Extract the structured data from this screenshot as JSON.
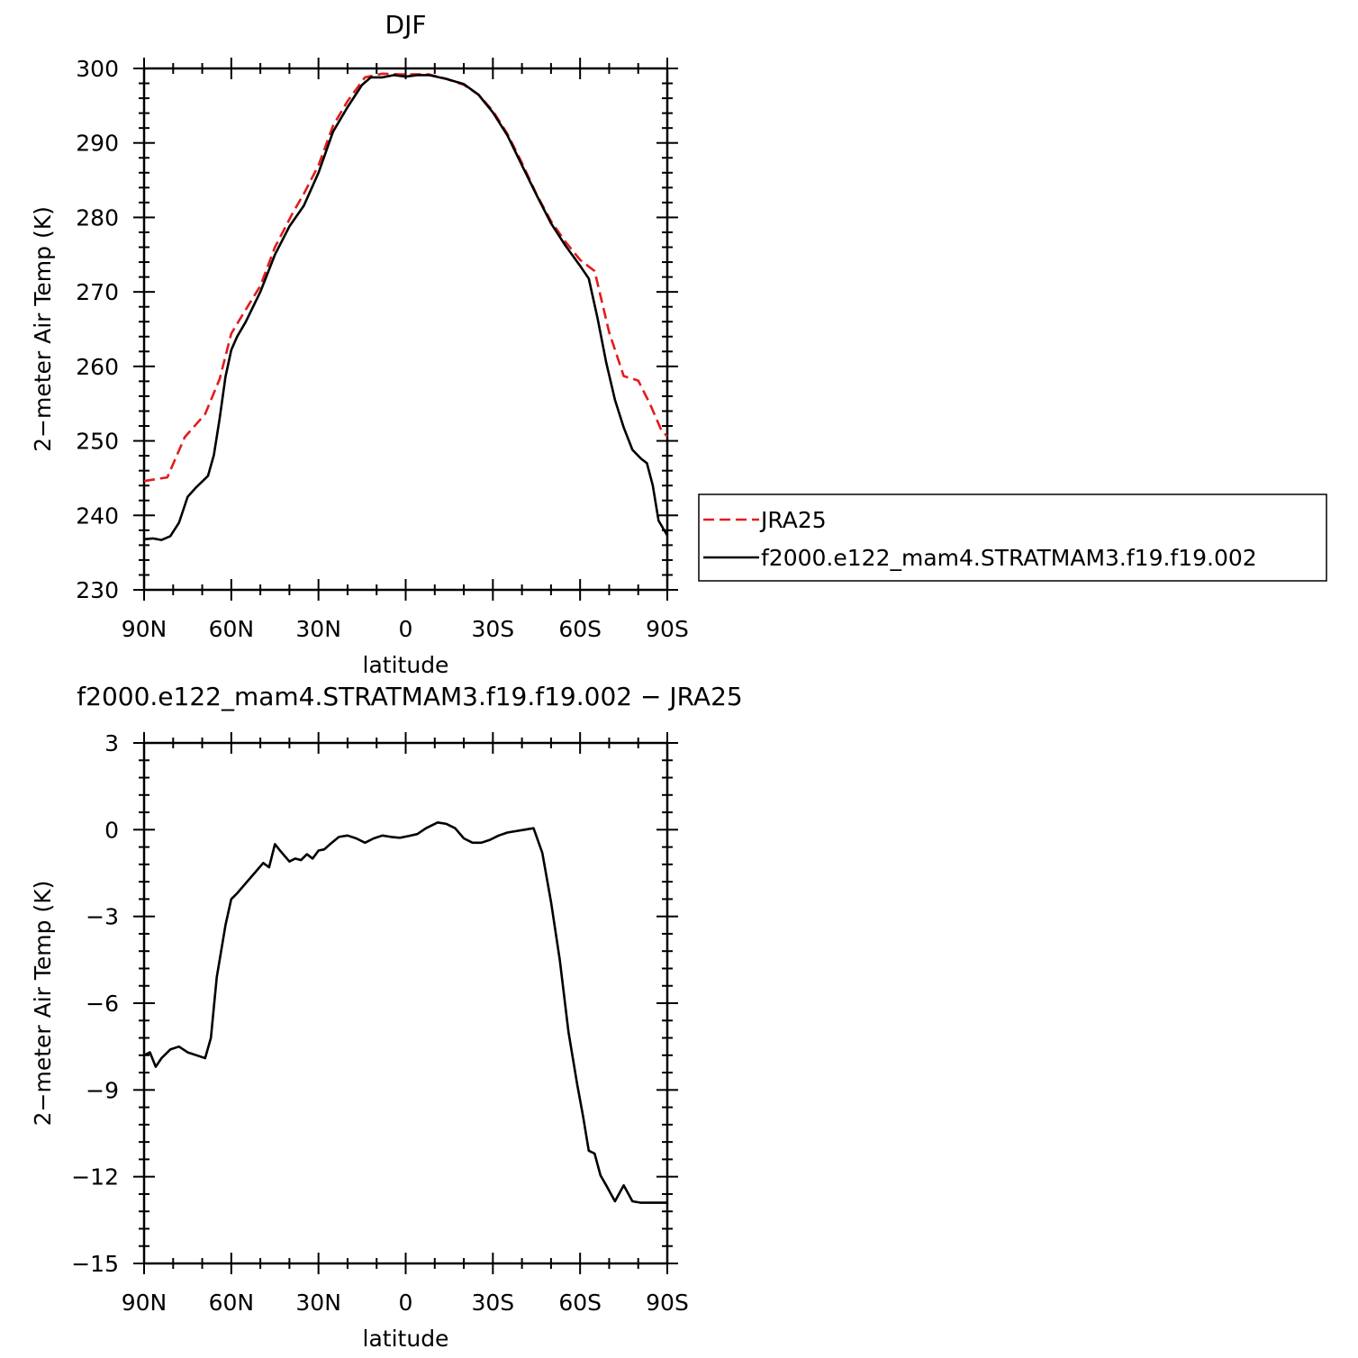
{
  "chart_data": [
    {
      "type": "line",
      "title": "DJF",
      "xlabel": "latitude",
      "ylabel": "2−meter Air Temp (K)",
      "xlim": [
        90,
        -90
      ],
      "ylim": [
        230,
        300
      ],
      "x_ticks": [
        90,
        60,
        30,
        0,
        -30,
        -60,
        -90
      ],
      "x_tick_labels": [
        "90N",
        "60N",
        "30N",
        "0",
        "30S",
        "60S",
        "90S"
      ],
      "y_ticks": [
        230,
        240,
        250,
        260,
        270,
        280,
        290,
        300
      ],
      "y_tick_labels": [
        "230",
        "240",
        "250",
        "260",
        "270",
        "280",
        "290",
        "300"
      ],
      "grid": false,
      "legend_position": "right",
      "series": [
        {
          "name": "JRA25",
          "color": "#e41a1c",
          "dash": "dashed",
          "x": [
            90,
            82,
            76,
            69,
            64,
            60,
            56,
            50,
            45,
            39,
            35,
            30,
            25,
            20,
            14,
            8,
            2,
            -3,
            -8,
            -14,
            -20,
            -25,
            -30,
            -35,
            -40,
            -45,
            -50,
            -55,
            -60,
            -65,
            -70,
            -75,
            -80,
            -84,
            -88,
            -90
          ],
          "y": [
            244.6,
            245.1,
            250.5,
            253.6,
            258.3,
            264.4,
            267,
            270.8,
            276,
            280.5,
            283.2,
            287,
            292.3,
            295.6,
            298.8,
            299.3,
            299.2,
            299.2,
            299.2,
            298.6,
            297.8,
            296.5,
            294.3,
            291.2,
            287.3,
            283.1,
            279.5,
            276.7,
            274.3,
            272.8,
            264.6,
            258.7,
            258.1,
            255,
            251.4,
            250.6
          ]
        },
        {
          "name": "f2000.e122_mam4.STRATMAM3.f19.f19.002",
          "color": "#000000",
          "dash": "solid",
          "x": [
            90,
            87,
            84,
            81,
            78,
            75,
            72,
            68,
            66,
            64,
            62,
            60,
            58,
            55,
            50,
            45,
            40,
            35,
            30,
            25,
            20,
            15,
            12,
            8,
            4,
            0,
            -4,
            -8,
            -14,
            -20,
            -25,
            -30,
            -35,
            -40,
            -45,
            -50,
            -55,
            -60,
            -63,
            -66,
            -69,
            -72,
            -75,
            -78,
            -81,
            -83,
            -85,
            -87,
            -90
          ],
          "y": [
            236.8,
            236.9,
            236.7,
            237.2,
            239,
            242.5,
            243.8,
            245.3,
            248.1,
            253,
            258.6,
            262.2,
            264,
            266,
            270,
            275,
            278.8,
            281.6,
            286,
            291.5,
            294.8,
            297.8,
            298.8,
            298.8,
            299.1,
            298.9,
            299.1,
            299.1,
            298.6,
            297.9,
            296.5,
            294.1,
            291,
            287,
            283,
            279.2,
            276.2,
            273.5,
            271.8,
            266.5,
            260.5,
            255.5,
            251.8,
            248.8,
            247.6,
            247,
            244,
            239.3,
            237.3
          ]
        }
      ]
    },
    {
      "type": "line",
      "title": "f2000.e122_mam4.STRATMAM3.f19.f19.002  −  JRA25",
      "xlabel": "latitude",
      "ylabel": "2−meter Air Temp (K)",
      "xlim": [
        90,
        -90
      ],
      "ylim": [
        -15,
        3
      ],
      "x_ticks": [
        90,
        60,
        30,
        0,
        -30,
        -60,
        -90
      ],
      "x_tick_labels": [
        "90N",
        "60N",
        "30N",
        "0",
        "30S",
        "60S",
        "90S"
      ],
      "y_ticks": [
        -15,
        -12,
        -9,
        -6,
        -3,
        0,
        3
      ],
      "y_tick_labels": [
        "−15",
        "−12",
        "−9",
        "−6",
        "−3",
        "0",
        "3"
      ],
      "grid": false,
      "series": [
        {
          "color": "#000000",
          "dash": "solid",
          "x": [
            90,
            88,
            86,
            84,
            81,
            78,
            75,
            72,
            69,
            67,
            65,
            62,
            60,
            58,
            55,
            52,
            49,
            47,
            45,
            43,
            40,
            38,
            36,
            34,
            32,
            30,
            28,
            26,
            23,
            20,
            17,
            14,
            11,
            8,
            5,
            2,
            -1,
            -4,
            -7,
            -11,
            -14,
            -17,
            -20,
            -23,
            -26,
            -29,
            -32,
            -35,
            -38,
            -41,
            -44,
            -47,
            -50,
            -53,
            -56,
            -59,
            -61,
            -63,
            -65,
            -67,
            -69,
            -72,
            -75,
            -78,
            -81,
            -83,
            -85,
            -88,
            -90
          ],
          "y": [
            -7.8,
            -7.7,
            -8.2,
            -7.9,
            -7.6,
            -7.5,
            -7.7,
            -7.8,
            -7.9,
            -7.2,
            -5.1,
            -3.3,
            -2.4,
            -2.2,
            -1.85,
            -1.5,
            -1.15,
            -1.3,
            -0.5,
            -0.75,
            -1.1,
            -1,
            -1.05,
            -0.85,
            -1,
            -0.72,
            -0.68,
            -0.5,
            -0.25,
            -0.2,
            -0.3,
            -0.45,
            -0.3,
            -0.2,
            -0.25,
            -0.28,
            -0.22,
            -0.15,
            0.05,
            0.25,
            0.2,
            0.05,
            -0.3,
            -0.45,
            -0.45,
            -0.35,
            -0.2,
            -0.1,
            -0.05,
            0,
            0.05,
            -0.8,
            -2.5,
            -4.5,
            -7,
            -8.8,
            -9.9,
            -11.1,
            -11.2,
            -11.95,
            -12.3,
            -12.85,
            -12.3,
            -12.85,
            -12.9,
            -12.9,
            -12.9,
            -12.9,
            -12.9
          ]
        }
      ]
    }
  ]
}
